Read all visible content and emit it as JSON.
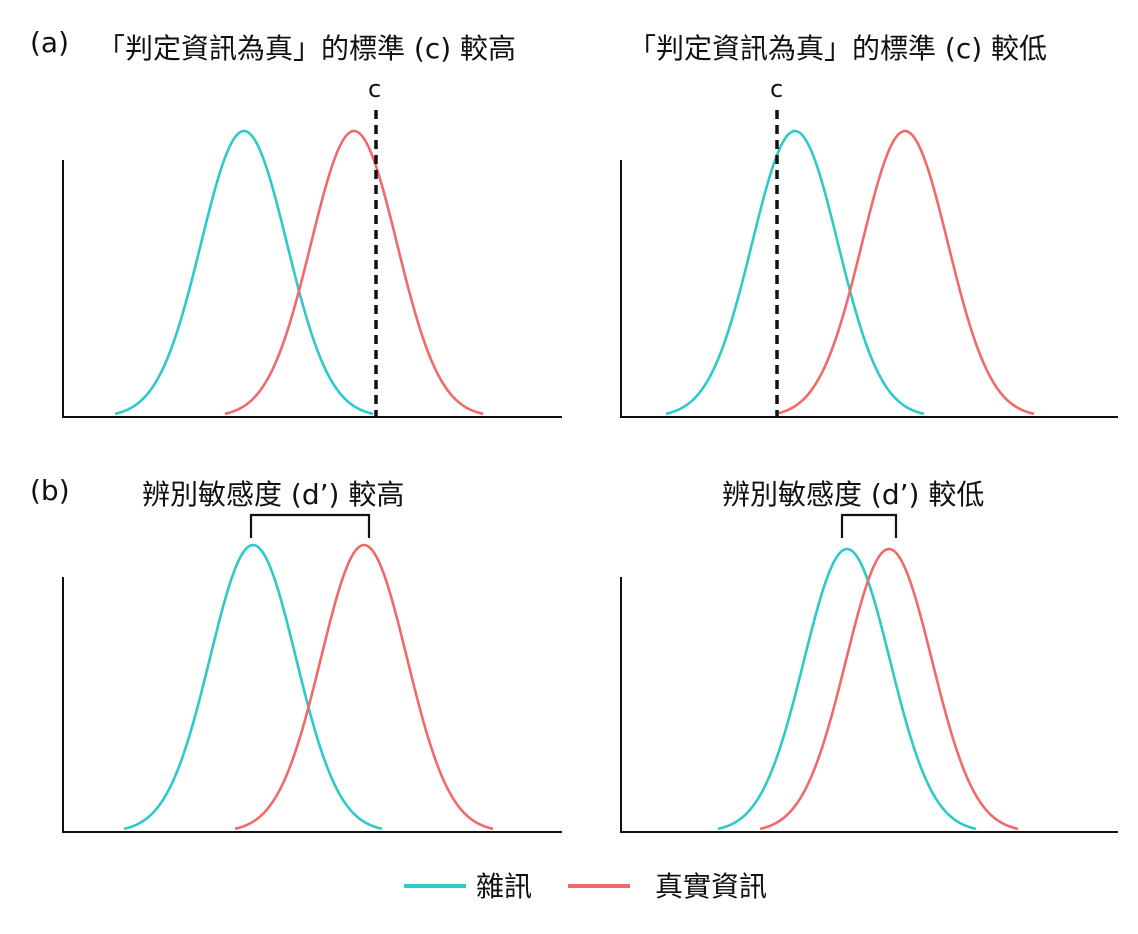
{
  "labels": {
    "panel_a": "(a)",
    "panel_b": "(b)",
    "criterion_high": "「判定資訊為真」的標準 (c) 較高",
    "criterion_low": "「判定資訊為真」的標準 (c) 較低",
    "criterion_marker": "c",
    "sensitivity_high": "辨別敏感度 (d’) 較高",
    "sensitivity_low": "辨別敏感度 (d’) 較低"
  },
  "legend": [
    {
      "label": "雜訊",
      "color": "#2ec9c9"
    },
    {
      "label": "真實資訊",
      "color": "#f06a6a"
    }
  ],
  "colors": {
    "noise": "#2ec9c9",
    "signal": "#f06a6a",
    "axis": "#111111"
  }
}
